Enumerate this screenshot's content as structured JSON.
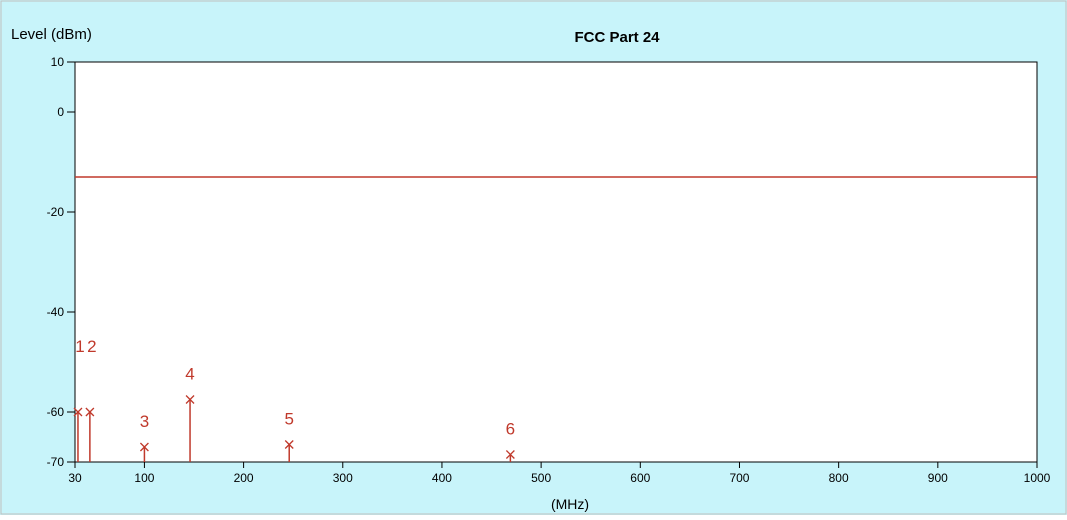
{
  "chart_data": {
    "type": "line",
    "title": "FCC  Part 24",
    "ylabel": "Level (dBm)",
    "xlabel": "(MHz)",
    "xlim": [
      30,
      1000
    ],
    "ylim": [
      -70,
      10
    ],
    "x_ticks": [
      30,
      100,
      200,
      300,
      400,
      500,
      600,
      700,
      800,
      900,
      1000
    ],
    "y_ticks": [
      10,
      0,
      -20,
      -40,
      -60,
      -70
    ],
    "limit_line": {
      "value": -13
    },
    "markers": [
      {
        "label": "1",
        "x": 33,
        "y": -60
      },
      {
        "label": "2",
        "x": 45,
        "y": -60
      },
      {
        "label": "3",
        "x": 100,
        "y": -67
      },
      {
        "label": "4",
        "x": 146,
        "y": -57.5
      },
      {
        "label": "5",
        "x": 246,
        "y": -66.5
      },
      {
        "label": "6",
        "x": 469,
        "y": -68.5
      }
    ],
    "colors": {
      "background": "#c8f4fa",
      "plot_area": "#ffffff",
      "series": "#c0392b",
      "limit_line": "#c0392b",
      "axis": "#000000"
    }
  }
}
